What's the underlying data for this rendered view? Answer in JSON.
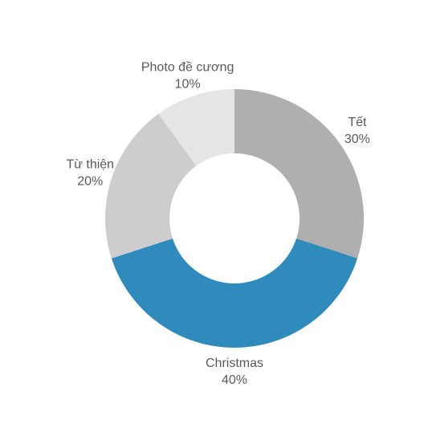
{
  "chart_data": {
    "type": "pie",
    "variant": "donut",
    "title": "",
    "categories": [
      "Tết",
      "Christmas",
      "Từ thiện",
      "Photo đề cương"
    ],
    "values": [
      30,
      40,
      20,
      10
    ],
    "percent_labels": [
      "30%",
      "40%",
      "20%",
      "10%"
    ],
    "colors": [
      "#afafaf",
      "#2e8bbb",
      "#cdcdcd",
      "#e5e5e5"
    ],
    "start_angle_deg": 0,
    "direction": "clockwise",
    "legend": "none"
  }
}
